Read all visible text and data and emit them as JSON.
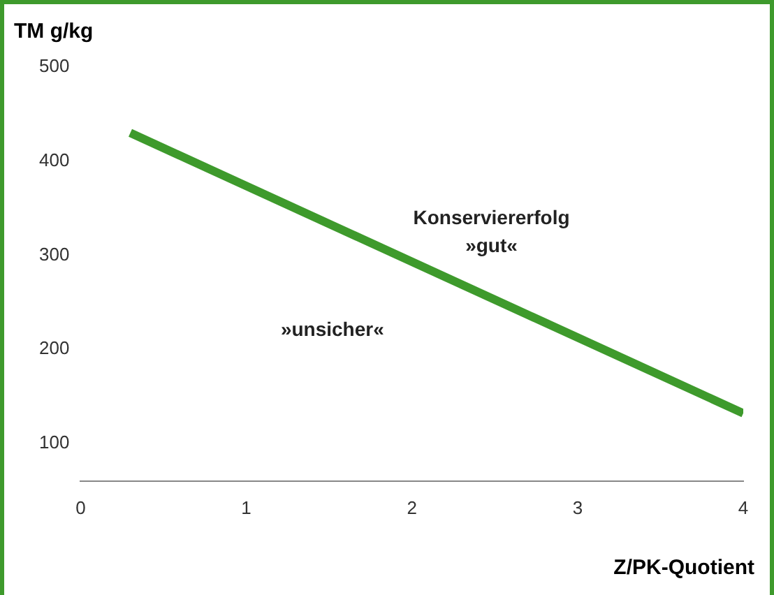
{
  "chart_data": {
    "type": "line",
    "ylabel": "TM g/kg",
    "xlabel": "Z/PK-Quotient",
    "x": [
      0.3,
      4
    ],
    "series": [
      {
        "color": "#3e9a2c",
        "values": [
          430,
          132
        ]
      }
    ],
    "xlim": [
      0,
      4
    ],
    "xticks": [
      0,
      1,
      2,
      3,
      4
    ],
    "ylim": [
      60,
      500
    ],
    "yticks": [
      100,
      200,
      300,
      400,
      500
    ],
    "grid": false,
    "legend": false,
    "marker": "none",
    "line_style": "solid",
    "annotations": [
      "Konserviererfolg\n»gut«",
      "»unsicher«"
    ]
  }
}
